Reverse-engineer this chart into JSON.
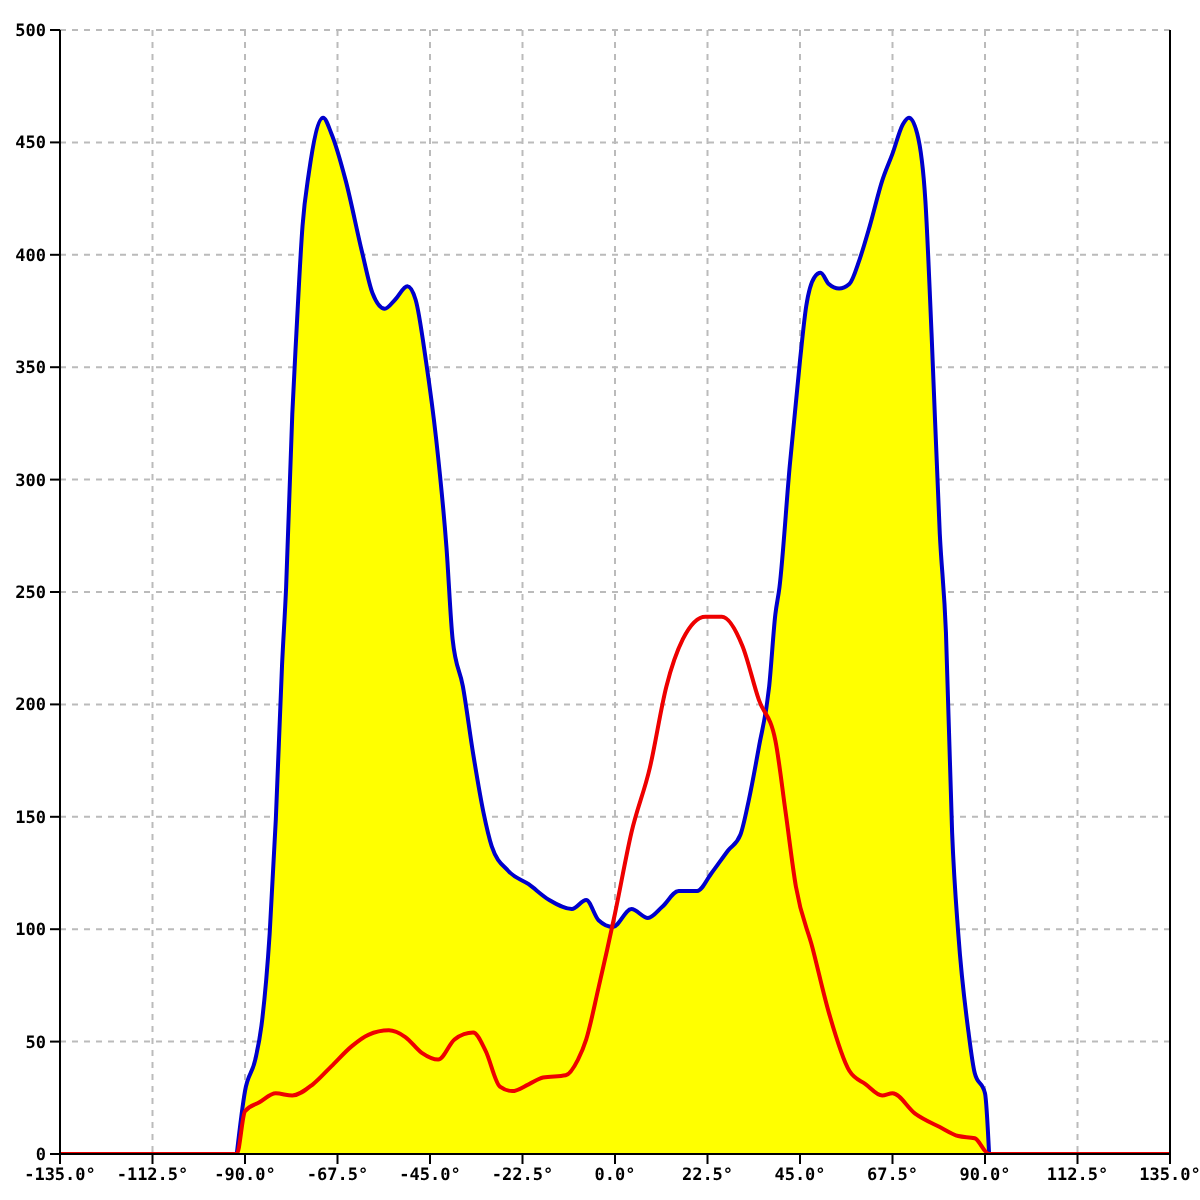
{
  "chart_data": {
    "type": "line",
    "xlim": [
      -135,
      135
    ],
    "xticks": [
      {
        "value": -135,
        "label": "-135.0°"
      },
      {
        "value": -112.5,
        "label": "-112.5°"
      },
      {
        "value": -90,
        "label": "-90.0°"
      },
      {
        "value": -67.5,
        "label": "-67.5°"
      },
      {
        "value": -45,
        "label": "-45.0°"
      },
      {
        "value": -22.5,
        "label": "-22.5°"
      },
      {
        "value": 0,
        "label": "0.0°"
      },
      {
        "value": 22.5,
        "label": "22.5°"
      },
      {
        "value": 45,
        "label": "45.0°"
      },
      {
        "value": 67.5,
        "label": "67.5°"
      },
      {
        "value": 90,
        "label": "90.0°"
      },
      {
        "value": 112.5,
        "label": "112.5°"
      },
      {
        "value": 135,
        "label": "135.0°"
      }
    ],
    "ylim": [
      0,
      500
    ],
    "yticks": [
      0,
      50,
      100,
      150,
      200,
      250,
      300,
      350,
      400,
      450,
      500
    ],
    "grid": true,
    "line_style": "solid",
    "series": [
      {
        "type": "area",
        "color": "#ffff00",
        "x": [
          -92,
          -90,
          -87.5,
          -86,
          -84,
          -82.5,
          -81,
          -80,
          -78.5,
          -77.5,
          -76,
          -74.5,
          -71,
          -69,
          -65.5,
          -61.5,
          -59,
          -56,
          -53.5,
          -50.5,
          -48.5,
          -46,
          -43.5,
          -41,
          -39.5,
          -37,
          -34.5,
          -32,
          -30,
          -26,
          -21,
          -16,
          -10.5,
          -7,
          -4,
          -0.5,
          4,
          8,
          11.5,
          15.5,
          20,
          23.5,
          27.5,
          30.5,
          32.5,
          35,
          37.5,
          39,
          40,
          42.5,
          45,
          46.5,
          48.5,
          50,
          52,
          54.5,
          57,
          59.5,
          62,
          65,
          67.5,
          70,
          71.5,
          73.5,
          75.5,
          77,
          79,
          80.5,
          82,
          83.5,
          86,
          87.5,
          90,
          91
        ],
        "values": [
          0,
          28,
          42,
          57,
          98,
          149,
          217,
          252,
          329,
          365,
          413,
          436,
          461,
          454,
          433,
          401,
          383,
          376,
          380,
          386,
          380,
          353,
          318,
          270,
          229,
          208,
          178,
          152,
          137,
          126,
          120,
          113,
          109,
          113,
          104,
          101,
          109,
          105,
          110,
          117,
          117,
          125,
          135,
          142,
          157,
          181,
          208,
          240,
          252,
          306,
          353,
          377,
          390,
          392,
          387,
          385,
          387,
          398,
          413,
          433,
          445,
          458,
          461,
          454,
          424,
          365,
          276,
          232,
          143,
          98,
          54,
          36,
          27,
          0
        ]
      },
      {
        "color": "#ee0000",
        "x": [
          -135,
          -92,
          -90,
          -86.5,
          -82.5,
          -78.5,
          -73.5,
          -69,
          -64,
          -60,
          -55,
          -51,
          -47,
          -43,
          -39,
          -34.5,
          -31.5,
          -28,
          -25,
          -21,
          -17.5,
          -12,
          -9,
          -7,
          -4,
          0,
          4,
          8.5,
          12.5,
          16.5,
          22,
          26,
          31,
          35,
          39,
          41.5,
          44,
          48,
          52,
          57,
          61,
          65,
          67.5,
          73,
          79,
          83.5,
          87.5,
          91,
          135
        ],
        "values": [
          0,
          0,
          19,
          23,
          27,
          26,
          31,
          39,
          48,
          53,
          55,
          52,
          45,
          42,
          51,
          54,
          46,
          30,
          28,
          31,
          34,
          35,
          42,
          51,
          74,
          107,
          143,
          172,
          208,
          229,
          239,
          239,
          226,
          202,
          184,
          152,
          119,
          92,
          63,
          37,
          31,
          26,
          27,
          18,
          12,
          8,
          7,
          0,
          0
        ]
      }
    ]
  }
}
